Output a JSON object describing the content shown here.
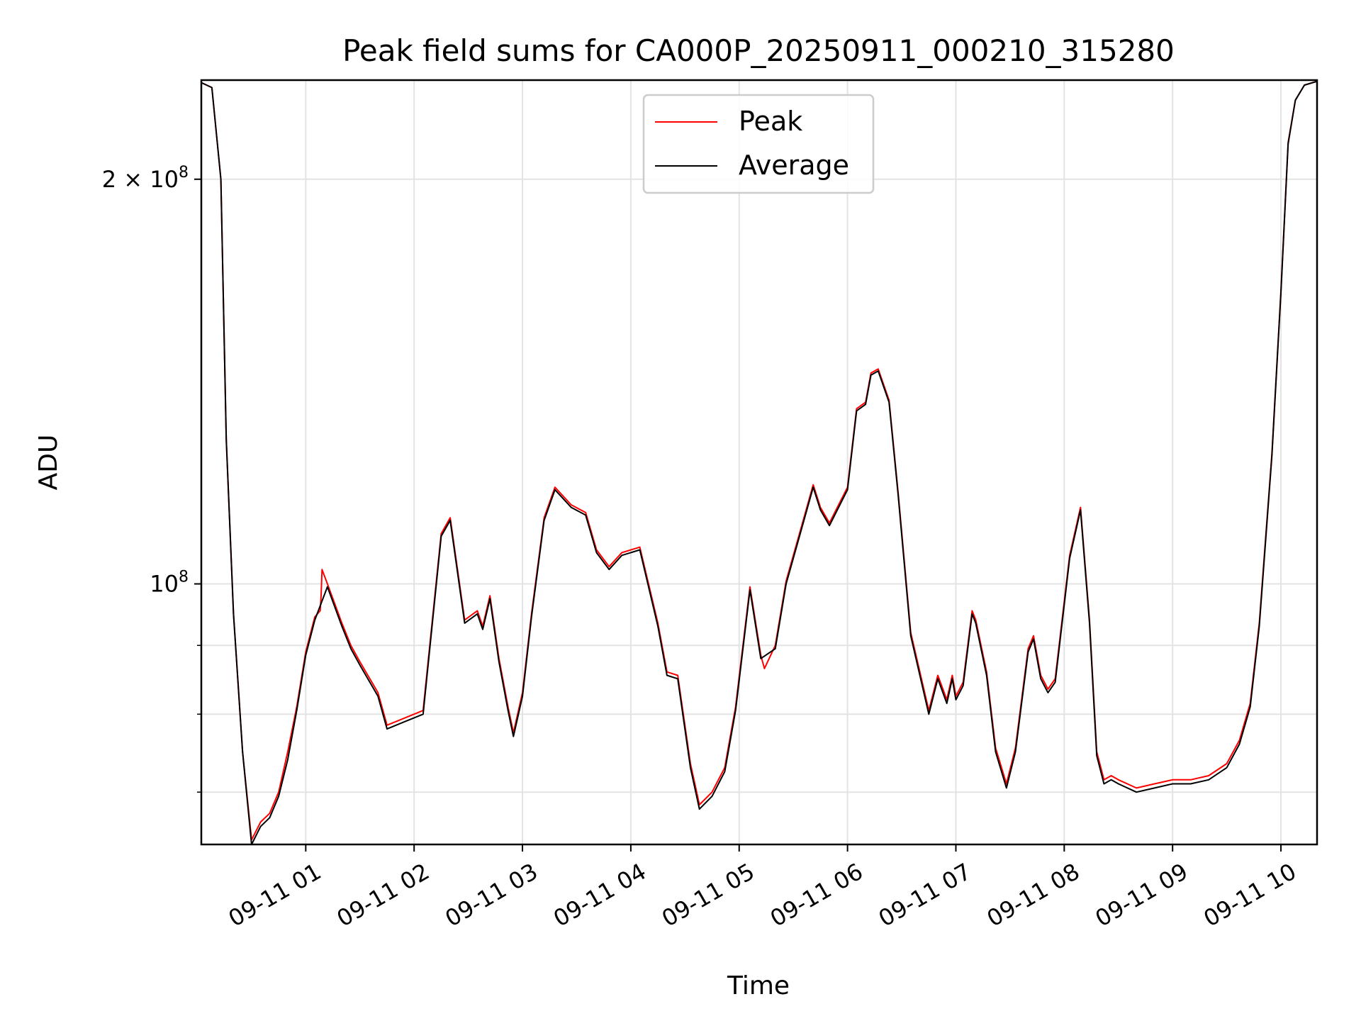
{
  "chart_data": {
    "type": "line",
    "title": "Peak field sums for CA000P_20250911_000210_315280",
    "xlabel": "Time",
    "ylabel": "ADU",
    "y_scale": "log",
    "ylim": [
      64000000,
      237000000
    ],
    "xlim": [
      "2025-09-11 00:02:10",
      "2025-09-11 10:20:00"
    ],
    "grid": true,
    "legend_position": "top-center",
    "x_ticks": [
      {
        "t": "2025-09-11 01:00",
        "label": "09-11 01"
      },
      {
        "t": "2025-09-11 02:00",
        "label": "09-11 02"
      },
      {
        "t": "2025-09-11 03:00",
        "label": "09-11 03"
      },
      {
        "t": "2025-09-11 04:00",
        "label": "09-11 04"
      },
      {
        "t": "2025-09-11 05:00",
        "label": "09-11 05"
      },
      {
        "t": "2025-09-11 06:00",
        "label": "09-11 06"
      },
      {
        "t": "2025-09-11 07:00",
        "label": "09-11 07"
      },
      {
        "t": "2025-09-11 08:00",
        "label": "09-11 08"
      },
      {
        "t": "2025-09-11 09:00",
        "label": "09-11 09"
      },
      {
        "t": "2025-09-11 10:00",
        "label": "09-11 10"
      }
    ],
    "y_major_ticks": [
      {
        "value": 100000000,
        "label_base": "10",
        "label_exp": "8",
        "label_coef": ""
      },
      {
        "value": 200000000,
        "label_base": "10",
        "label_exp": "8",
        "label_coef": "2 × "
      }
    ],
    "y_minor_ticks": [
      70000000,
      80000000,
      90000000
    ],
    "series": [
      {
        "name": "Peak",
        "color": "#ff0000",
        "x": [
          "2025-09-11 00:02:10",
          "2025-09-11 00:08",
          "2025-09-11 00:13",
          "2025-09-11 00:16",
          "2025-09-11 00:20",
          "2025-09-11 00:25",
          "2025-09-11 00:30",
          "2025-09-11 00:35",
          "2025-09-11 00:40",
          "2025-09-11 00:45",
          "2025-09-11 00:50",
          "2025-09-11 00:55",
          "2025-09-11 01:00",
          "2025-09-11 01:05",
          "2025-09-11 01:08",
          "2025-09-11 01:08:30",
          "2025-09-11 01:09",
          "2025-09-11 01:12",
          "2025-09-11 01:20",
          "2025-09-11 01:25",
          "2025-09-11 01:30",
          "2025-09-11 01:40",
          "2025-09-11 01:45",
          "2025-09-11 01:55",
          "2025-09-11 02:05",
          "2025-09-11 02:15",
          "2025-09-11 02:20",
          "2025-09-11 02:28",
          "2025-09-11 02:35",
          "2025-09-11 02:38",
          "2025-09-11 02:42",
          "2025-09-11 02:47",
          "2025-09-11 02:52",
          "2025-09-11 02:55",
          "2025-09-11 03:00",
          "2025-09-11 03:05",
          "2025-09-11 03:12",
          "2025-09-11 03:18",
          "2025-09-11 03:27",
          "2025-09-11 03:35",
          "2025-09-11 03:41",
          "2025-09-11 03:48",
          "2025-09-11 03:55",
          "2025-09-11 04:05",
          "2025-09-11 04:15",
          "2025-09-11 04:20",
          "2025-09-11 04:26",
          "2025-09-11 04:33",
          "2025-09-11 04:38",
          "2025-09-11 04:45",
          "2025-09-11 04:52",
          "2025-09-11 04:58",
          "2025-09-11 05:06",
          "2025-09-11 05:12",
          "2025-09-11 05:14",
          "2025-09-11 05:20",
          "2025-09-11 05:26",
          "2025-09-11 05:33",
          "2025-09-11 05:41",
          "2025-09-11 05:45",
          "2025-09-11 05:50",
          "2025-09-11 06:00",
          "2025-09-11 06:05",
          "2025-09-11 06:10",
          "2025-09-11 06:13",
          "2025-09-11 06:17",
          "2025-09-11 06:23",
          "2025-09-11 06:28",
          "2025-09-11 06:35",
          "2025-09-11 06:45",
          "2025-09-11 06:50",
          "2025-09-11 06:55",
          "2025-09-11 06:58",
          "2025-09-11 07:00",
          "2025-09-11 07:04",
          "2025-09-11 07:09",
          "2025-09-11 07:11",
          "2025-09-11 07:17",
          "2025-09-11 07:22",
          "2025-09-11 07:28",
          "2025-09-11 07:33",
          "2025-09-11 07:40",
          "2025-09-11 07:43",
          "2025-09-11 07:47",
          "2025-09-11 07:51",
          "2025-09-11 07:55",
          "2025-09-11 08:03",
          "2025-09-11 08:09",
          "2025-09-11 08:14",
          "2025-09-11 08:18",
          "2025-09-11 08:22",
          "2025-09-11 08:26",
          "2025-09-11 08:30",
          "2025-09-11 08:40",
          "2025-09-11 08:50",
          "2025-09-11 09:00",
          "2025-09-11 09:10",
          "2025-09-11 09:20",
          "2025-09-11 09:30",
          "2025-09-11 09:37",
          "2025-09-11 09:43",
          "2025-09-11 09:48",
          "2025-09-11 09:55",
          "2025-09-11 10:00",
          "2025-09-11 10:04",
          "2025-09-11 10:08",
          "2025-09-11 10:13",
          "2025-09-11 10:20"
        ],
        "values": [
          236000000,
          234000000,
          200000000,
          128000000,
          95000000,
          75000000,
          64500000,
          66500000,
          67500000,
          70000000,
          75000000,
          81000000,
          89000000,
          94500000,
          95500000,
          98000000,
          102500000,
          100000000,
          93500000,
          90000000,
          87500000,
          83000000,
          78500000,
          79500000,
          80500000,
          109000000,
          112000000,
          94000000,
          95500000,
          93000000,
          98000000,
          88000000,
          81000000,
          77500000,
          83000000,
          95000000,
          112000000,
          118000000,
          114500000,
          113000000,
          106000000,
          103000000,
          105500000,
          106500000,
          93500000,
          86000000,
          85500000,
          73500000,
          68500000,
          70000000,
          73000000,
          81000000,
          99500000,
          88500000,
          86500000,
          90000000,
          100500000,
          108500000,
          118500000,
          114000000,
          111000000,
          118000000,
          135000000,
          136500000,
          143500000,
          144500000,
          137000000,
          117000000,
          92000000,
          80500000,
          85500000,
          82000000,
          85500000,
          82500000,
          84500000,
          95500000,
          94000000,
          86000000,
          75500000,
          71000000,
          75500000,
          89500000,
          91500000,
          85500000,
          83500000,
          85000000,
          105000000,
          114000000,
          94000000,
          75000000,
          71500000,
          72000000,
          71500000,
          70500000,
          71000000,
          71500000,
          71500000,
          72000000,
          73500000,
          76500000,
          81500000,
          93500000,
          125000000,
          165000000,
          213000000,
          229000000,
          235000000,
          236500000
        ]
      },
      {
        "name": "Average",
        "color": "#000000",
        "x": [
          "2025-09-11 00:02:10",
          "2025-09-11 00:08",
          "2025-09-11 00:13",
          "2025-09-11 00:16",
          "2025-09-11 00:20",
          "2025-09-11 00:25",
          "2025-09-11 00:30",
          "2025-09-11 00:35",
          "2025-09-11 00:40",
          "2025-09-11 00:45",
          "2025-09-11 00:50",
          "2025-09-11 00:55",
          "2025-09-11 01:00",
          "2025-09-11 01:05",
          "2025-09-11 01:12",
          "2025-09-11 01:20",
          "2025-09-11 01:25",
          "2025-09-11 01:30",
          "2025-09-11 01:40",
          "2025-09-11 01:45",
          "2025-09-11 01:55",
          "2025-09-11 02:05",
          "2025-09-11 02:15",
          "2025-09-11 02:20",
          "2025-09-11 02:28",
          "2025-09-11 02:35",
          "2025-09-11 02:38",
          "2025-09-11 02:42",
          "2025-09-11 02:47",
          "2025-09-11 02:52",
          "2025-09-11 02:55",
          "2025-09-11 03:00",
          "2025-09-11 03:05",
          "2025-09-11 03:12",
          "2025-09-11 03:18",
          "2025-09-11 03:27",
          "2025-09-11 03:35",
          "2025-09-11 03:41",
          "2025-09-11 03:48",
          "2025-09-11 03:55",
          "2025-09-11 04:05",
          "2025-09-11 04:15",
          "2025-09-11 04:20",
          "2025-09-11 04:26",
          "2025-09-11 04:33",
          "2025-09-11 04:38",
          "2025-09-11 04:45",
          "2025-09-11 04:52",
          "2025-09-11 04:58",
          "2025-09-11 05:06",
          "2025-09-11 05:12",
          "2025-09-11 05:20",
          "2025-09-11 05:26",
          "2025-09-11 05:33",
          "2025-09-11 05:41",
          "2025-09-11 05:45",
          "2025-09-11 05:50",
          "2025-09-11 06:00",
          "2025-09-11 06:05",
          "2025-09-11 06:10",
          "2025-09-11 06:13",
          "2025-09-11 06:17",
          "2025-09-11 06:23",
          "2025-09-11 06:28",
          "2025-09-11 06:35",
          "2025-09-11 06:45",
          "2025-09-11 06:50",
          "2025-09-11 06:55",
          "2025-09-11 06:58",
          "2025-09-11 07:00",
          "2025-09-11 07:04",
          "2025-09-11 07:09",
          "2025-09-11 07:11",
          "2025-09-11 07:17",
          "2025-09-11 07:22",
          "2025-09-11 07:28",
          "2025-09-11 07:33",
          "2025-09-11 07:40",
          "2025-09-11 07:43",
          "2025-09-11 07:47",
          "2025-09-11 07:51",
          "2025-09-11 07:55",
          "2025-09-11 08:03",
          "2025-09-11 08:09",
          "2025-09-11 08:14",
          "2025-09-11 08:18",
          "2025-09-11 08:22",
          "2025-09-11 08:26",
          "2025-09-11 08:30",
          "2025-09-11 08:40",
          "2025-09-11 08:50",
          "2025-09-11 09:00",
          "2025-09-11 09:10",
          "2025-09-11 09:20",
          "2025-09-11 09:30",
          "2025-09-11 09:37",
          "2025-09-11 09:43",
          "2025-09-11 09:48",
          "2025-09-11 09:55",
          "2025-09-11 10:00",
          "2025-09-11 10:04",
          "2025-09-11 10:08",
          "2025-09-11 10:13",
          "2025-09-11 10:20"
        ],
        "values": [
          236000000,
          234000000,
          200000000,
          128000000,
          95000000,
          75000000,
          64000000,
          66000000,
          67000000,
          69500000,
          74000000,
          80500000,
          88500000,
          94000000,
          99500000,
          93000000,
          89500000,
          87000000,
          82500000,
          78000000,
          79000000,
          80000000,
          108500000,
          111500000,
          93500000,
          95000000,
          92500000,
          97500000,
          87500000,
          80500000,
          77000000,
          82500000,
          94500000,
          111500000,
          117500000,
          114000000,
          112500000,
          105500000,
          102500000,
          105000000,
          106000000,
          93000000,
          85500000,
          85000000,
          73000000,
          68000000,
          69500000,
          72500000,
          80500000,
          99000000,
          88000000,
          89500000,
          100000000,
          108000000,
          118000000,
          113500000,
          110500000,
          117500000,
          134500000,
          136000000,
          143000000,
          144000000,
          136500000,
          116500000,
          91500000,
          80000000,
          85000000,
          81500000,
          85000000,
          82000000,
          84000000,
          95000000,
          93500000,
          85500000,
          75000000,
          70500000,
          75000000,
          89000000,
          91000000,
          85000000,
          83000000,
          84500000,
          104500000,
          113500000,
          93500000,
          74500000,
          71000000,
          71500000,
          71000000,
          70000000,
          70500000,
          71000000,
          71000000,
          71500000,
          73000000,
          76000000,
          81000000,
          93000000,
          124500000,
          164500000,
          212500000,
          229000000,
          235000000,
          236500000
        ]
      }
    ]
  }
}
